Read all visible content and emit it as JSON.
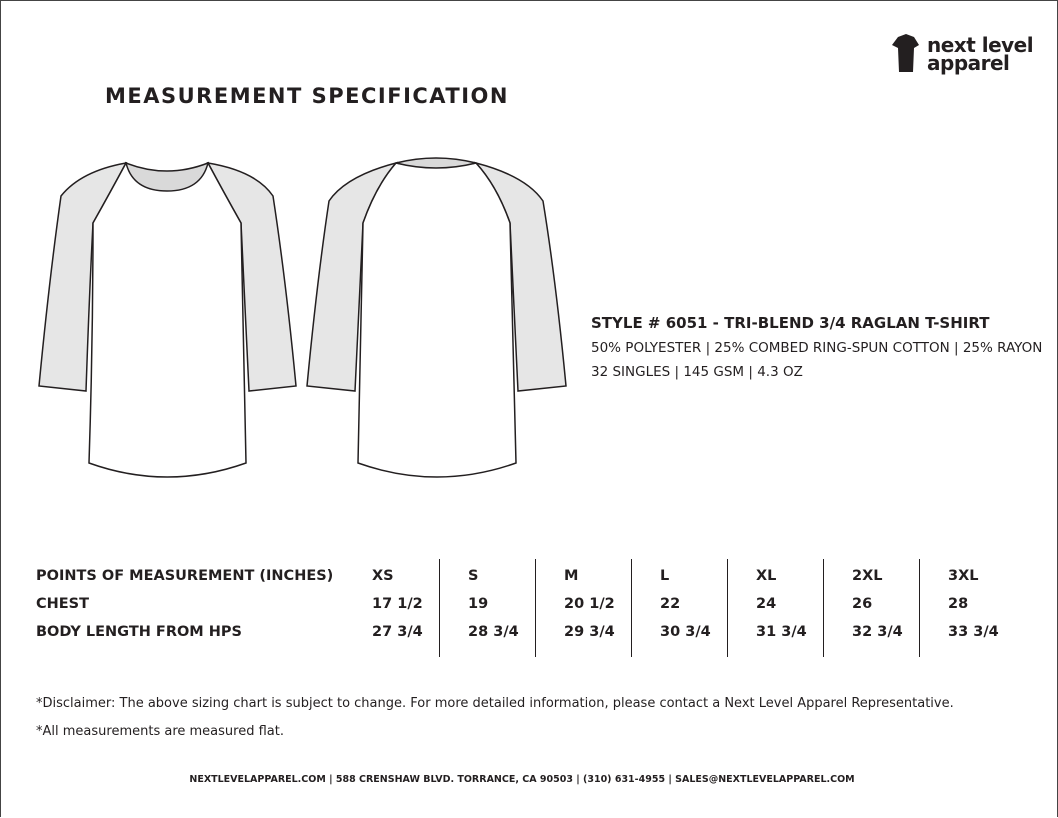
{
  "logo": {
    "line1": "next level",
    "line2": "apparel"
  },
  "title": "MEASUREMENT SPECIFICATION",
  "style": {
    "name": "STYLE # 6051 - TRI-BLEND 3/4 RAGLAN T-SHIRT",
    "fabric": "50% POLYESTER | 25% COMBED RING-SPUN COTTON | 25% RAYON",
    "details": "32 SINGLES | 145 GSM | 4.3 OZ"
  },
  "table": {
    "header": [
      "POINTS OF MEASUREMENT (INCHES)",
      "XS",
      "S",
      "M",
      "L",
      "XL",
      "2XL",
      "3XL"
    ],
    "rows": [
      [
        "CHEST",
        "17 1/2",
        "19",
        "20 1/2",
        "22",
        "24",
        "26",
        "28"
      ],
      [
        "BODY LENGTH FROM HPS",
        "27 3/4",
        "28 3/4",
        "29 3/4",
        "30 3/4",
        "31 3/4",
        "32 3/4",
        "33 3/4"
      ]
    ]
  },
  "disclaimers": [
    "*Disclaimer: The above sizing chart is subject to change. For more detailed information, please contact a Next Level Apparel Representative.",
    "*All measurements are measured flat."
  ],
  "footer": "NEXTLEVELAPPAREL.COM | 588 CRENSHAW BLVD. TORRANCE, CA 90503 | (310) 631-4955 | SALES@NEXTLEVELAPPAREL.COM"
}
